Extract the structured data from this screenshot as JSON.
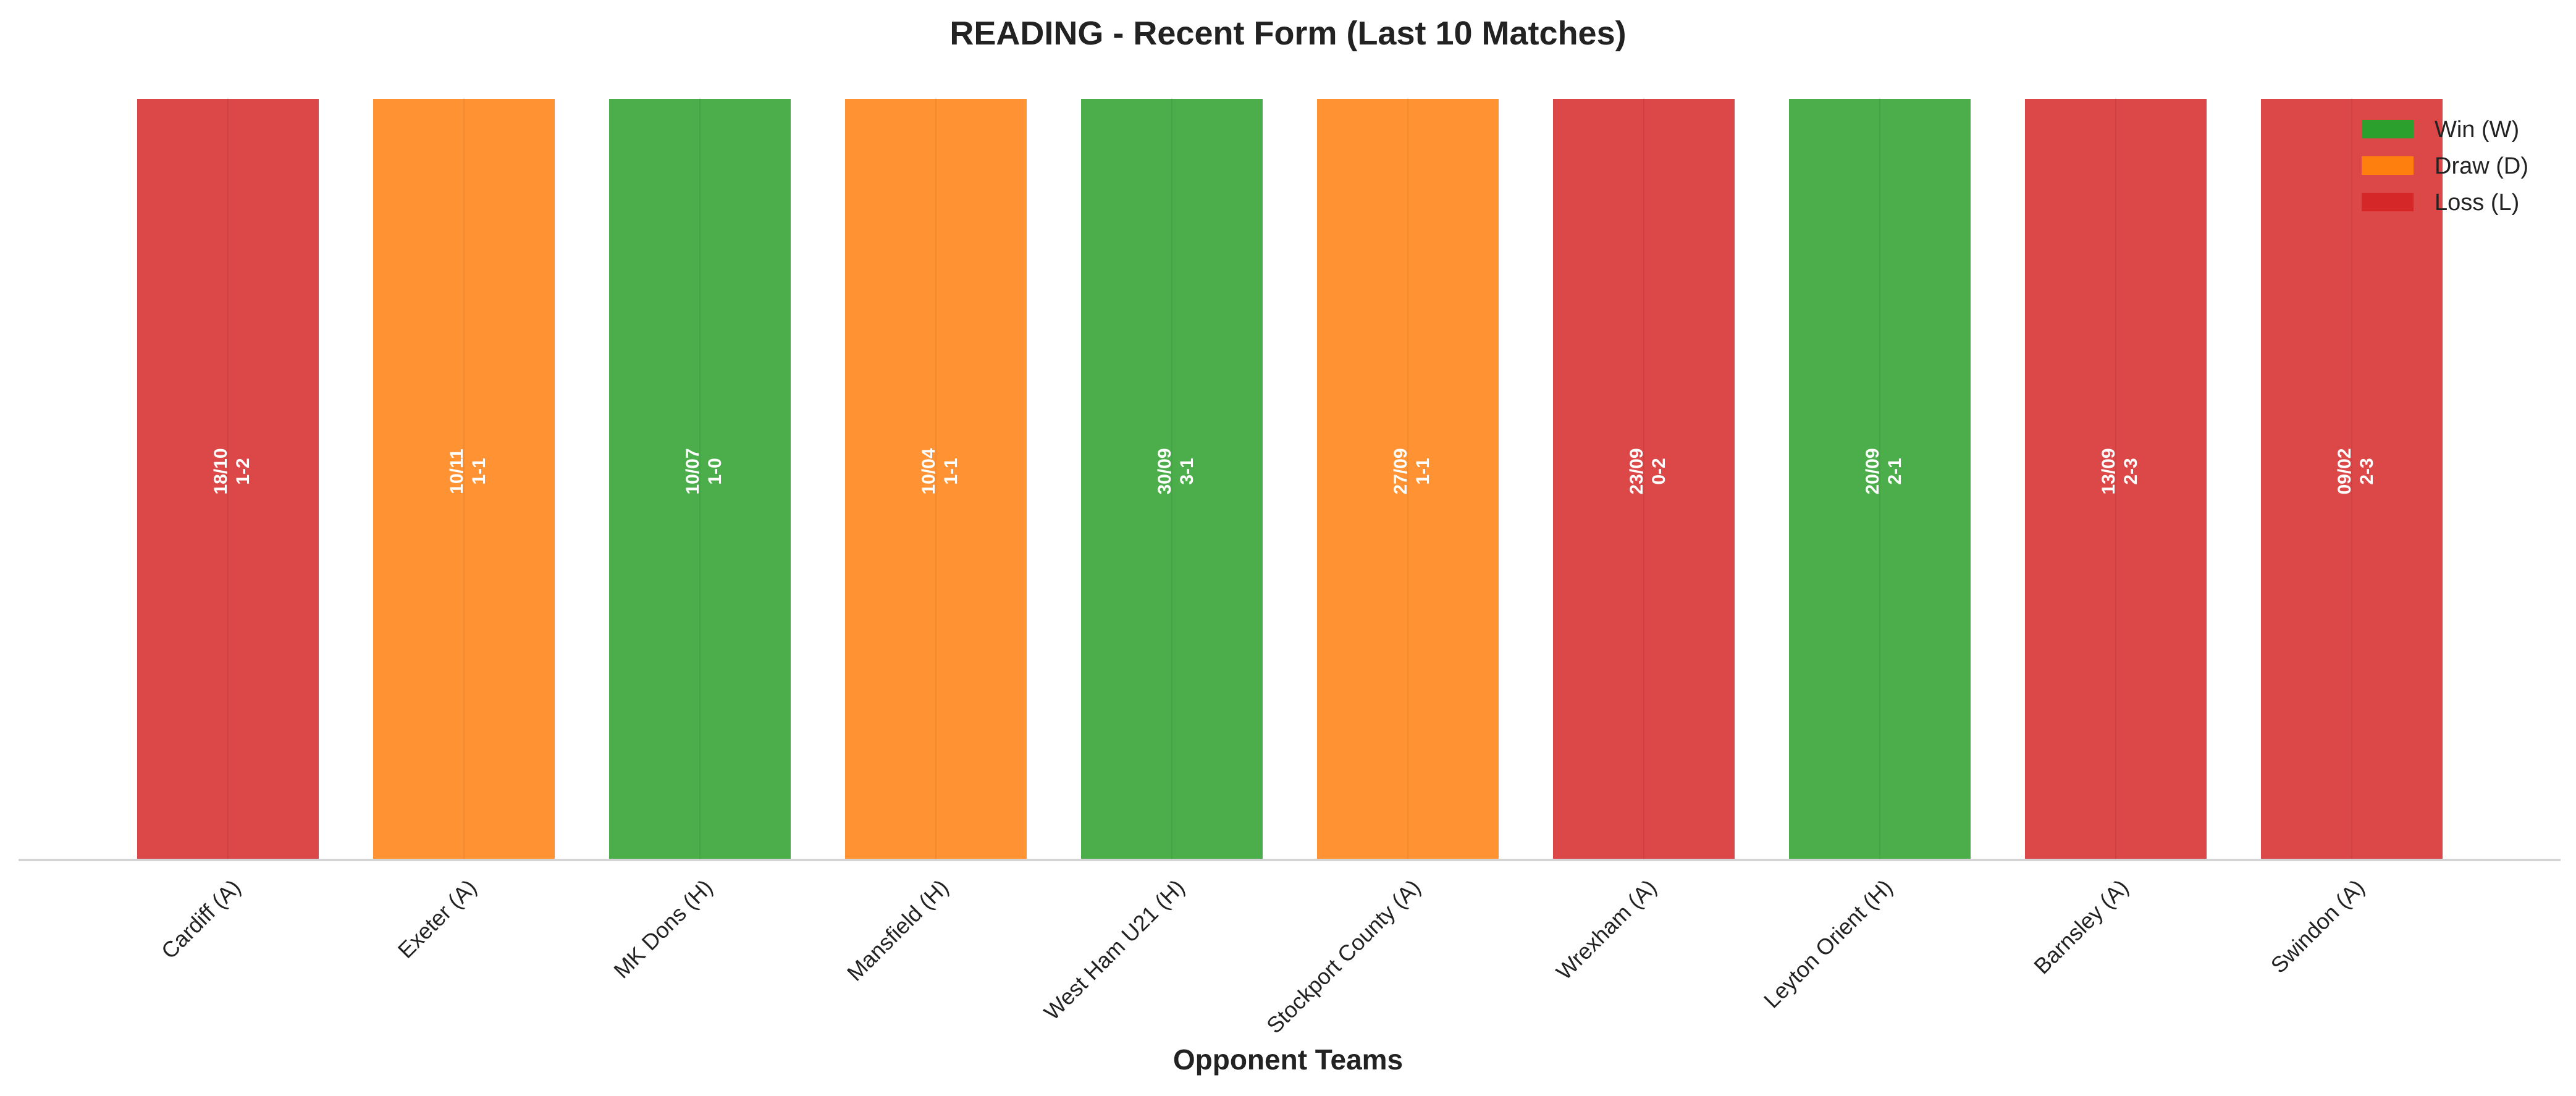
{
  "chart_data": {
    "type": "bar",
    "title": "READING - Recent Form (Last 10 Matches)",
    "xlabel": "Opponent Teams",
    "ylabel": "",
    "grid": false,
    "legend_position": "top-right",
    "categories": [
      "Cardiff (A)",
      "Exeter (A)",
      "MK Dons (H)",
      "Mansfield (H)",
      "West Ham U21 (H)",
      "Stockport County (A)",
      "Wrexham (A)",
      "Leyton Orient (H)",
      "Barnsley (A)",
      "Swindon (A)"
    ],
    "values": [
      1,
      1,
      1,
      1,
      1,
      1,
      1,
      1,
      1,
      1
    ],
    "results": [
      "L",
      "D",
      "W",
      "D",
      "W",
      "D",
      "L",
      "W",
      "L",
      "L"
    ],
    "dates": [
      "18/10",
      "10/11",
      "10/07",
      "10/04",
      "30/09",
      "27/09",
      "23/09",
      "20/09",
      "13/09",
      "09/02"
    ],
    "scores": [
      "1-2",
      "1-1",
      "1-0",
      "1-1",
      "3-1",
      "1-1",
      "0-2",
      "2-1",
      "2-3",
      "2-3"
    ],
    "legend": [
      {
        "key": "W",
        "label": "Win (W)"
      },
      {
        "key": "D",
        "label": "Draw (D)"
      },
      {
        "key": "L",
        "label": "Loss (L)"
      }
    ],
    "colors": {
      "W": "#2ca02c",
      "D": "#ff7f0e",
      "L": "#d62728"
    }
  }
}
